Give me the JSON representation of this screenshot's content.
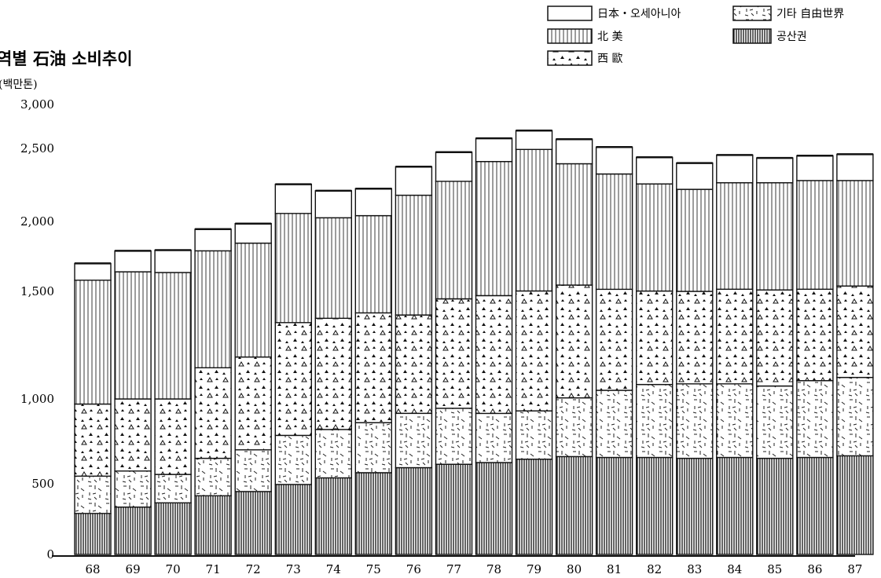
{
  "chart_data": {
    "type": "bar",
    "stacked": true,
    "title": "역별 石油 소비추이",
    "unit": "(백만톤)",
    "categories": [
      "68",
      "69",
      "70",
      "71",
      "72",
      "73",
      "74",
      "75",
      "76",
      "77",
      "78",
      "79",
      "80",
      "81",
      "82",
      "83",
      "84",
      "85",
      "86",
      "87"
    ],
    "y_ticks": [
      "0",
      "500",
      "1,000",
      "1,500",
      "2,000",
      "2,500",
      "3,000"
    ],
    "ylim": [
      0,
      3000
    ],
    "grid": false,
    "legend_position": "top-right",
    "series": [
      {
        "name": "공산권",
        "pattern": "dense-vertical-lines",
        "values": [
          290,
          335,
          365,
          415,
          445,
          495,
          535,
          565,
          595,
          615,
          625,
          645,
          660,
          655,
          655,
          650,
          655,
          650,
          655,
          665
        ]
      },
      {
        "name": "기타 自由世界",
        "pattern": "scattered-dashes",
        "values": [
          255,
          240,
          190,
          235,
          255,
          290,
          285,
          295,
          320,
          330,
          290,
          285,
          345,
          385,
          412,
          420,
          415,
          410,
          430,
          435
        ]
      },
      {
        "name": "西 歐",
        "pattern": "triangles",
        "values": [
          425,
          425,
          445,
          495,
          495,
          570,
          555,
          540,
          475,
          520,
          565,
          573,
          540,
          475,
          435,
          430,
          445,
          450,
          430,
          438
        ]
      },
      {
        "name": "北 美",
        "pattern": "vertical-lines",
        "values": [
          610,
          640,
          635,
          645,
          650,
          700,
          650,
          640,
          790,
          810,
          930,
          990,
          850,
          810,
          755,
          720,
          750,
          755,
          765,
          742
        ]
      },
      {
        "name": "日本・오세아니아",
        "pattern": "blank",
        "values": [
          120,
          150,
          160,
          155,
          140,
          200,
          185,
          185,
          195,
          200,
          205,
          210,
          210,
          190,
          182,
          180,
          190,
          170,
          170,
          180
        ]
      }
    ],
    "totals_approx": [
      1700,
      1790,
      1795,
      1945,
      1985,
      2255,
      2210,
      2225,
      2375,
      2475,
      2615,
      2703,
      2605,
      2515,
      2439,
      2400,
      2455,
      2435,
      2450,
      2460
    ]
  }
}
